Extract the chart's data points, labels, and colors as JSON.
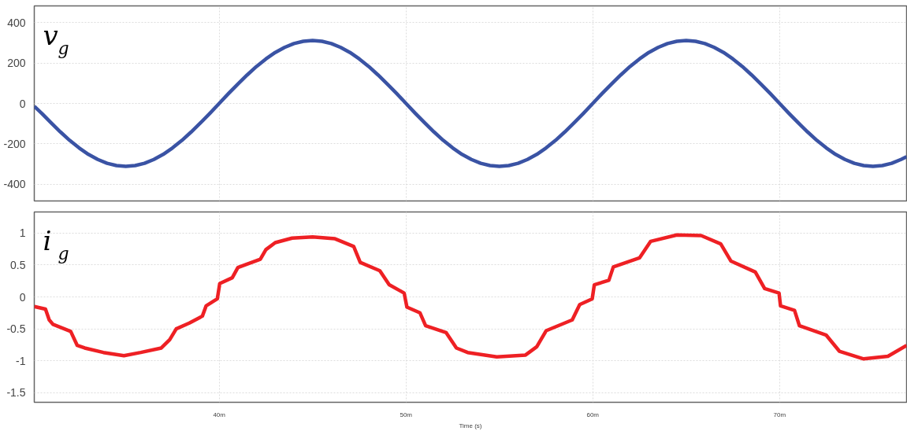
{
  "chart_data": [
    {
      "type": "line",
      "xlim": [
        30.1,
        76.8
      ],
      "xticks": [
        40,
        50,
        60,
        70
      ],
      "ylim": [
        -482,
        482
      ],
      "yticks": [
        -400,
        -200,
        0,
        200,
        400
      ],
      "grid": true,
      "tick_labels": "y",
      "legend": "top left",
      "line_style": "solid",
      "marker": "none",
      "series": [
        {
          "name": "v$_{g}$",
          "color": "#3a53a4",
          "x": [
            30.1,
            30.5,
            31,
            31.5,
            32,
            32.5,
            33,
            33.5,
            34,
            34.5,
            35,
            35.5,
            36,
            36.5,
            37,
            37.5,
            38,
            38.5,
            39,
            39.5,
            40,
            40.5,
            41,
            41.5,
            42,
            42.5,
            43,
            43.5,
            44,
            44.5,
            45,
            45.5,
            46,
            46.5,
            47,
            47.5,
            48,
            48.5,
            49,
            49.5,
            50,
            50.5,
            51,
            51.5,
            52,
            52.5,
            53,
            53.5,
            54,
            54.5,
            55,
            55.5,
            56,
            56.5,
            57,
            57.5,
            58,
            58.5,
            59,
            59.5,
            60,
            60.5,
            61,
            61.5,
            62,
            62.5,
            63,
            63.5,
            64,
            64.5,
            65,
            65.5,
            66,
            66.5,
            67,
            67.5,
            68,
            68.5,
            69,
            69.5,
            70,
            70.5,
            71,
            71.5,
            72,
            72.5,
            73,
            73.5,
            74,
            74.5,
            75,
            75.5,
            76,
            76.5,
            76.8
          ],
          "values": [
            -14,
            -49,
            -96,
            -141,
            -183,
            -220,
            -252,
            -277,
            -296,
            -307,
            -311,
            -307,
            -296,
            -277,
            -252,
            -220,
            -183,
            -141,
            -96,
            -49,
            0,
            49,
            96,
            141,
            183,
            220,
            252,
            277,
            296,
            307,
            311,
            307,
            296,
            277,
            252,
            220,
            183,
            141,
            96,
            49,
            0,
            -49,
            -96,
            -141,
            -183,
            -220,
            -252,
            -277,
            -296,
            -307,
            -311,
            -307,
            -296,
            -277,
            -252,
            -220,
            -183,
            -141,
            -96,
            -49,
            0,
            49,
            96,
            141,
            183,
            220,
            252,
            277,
            296,
            307,
            311,
            307,
            296,
            277,
            252,
            220,
            183,
            141,
            96,
            49,
            0,
            -49,
            -96,
            -141,
            -183,
            -220,
            -252,
            -277,
            -296,
            -307,
            -311,
            -307,
            -296,
            -277,
            -263
          ]
        }
      ]
    },
    {
      "type": "line",
      "xlim": [
        30.1,
        76.8
      ],
      "xticks": [
        {
          "value": 40,
          "label": "40m"
        },
        {
          "value": 50,
          "label": "50m"
        },
        {
          "value": 60,
          "label": "60m"
        },
        {
          "value": 70,
          "label": "70m"
        }
      ],
      "xlabel": "Time (s)",
      "ylim": [
        -1.65,
        1.33
      ],
      "yticks": [
        -1.5,
        -1,
        -0.5,
        0,
        0.5,
        1
      ],
      "grid": true,
      "legend": "top left",
      "line_style": "solid",
      "marker": "none",
      "series": [
        {
          "name": "i$_{g}$",
          "color": "#ee2024",
          "x": [
            30.1,
            30.7,
            30.9,
            31.1,
            32.05,
            32.4,
            32.8,
            33.8,
            34.9,
            35.8,
            36.9,
            37.35,
            37.7,
            38.4,
            39.1,
            39.3,
            39.9,
            40.03,
            40.7,
            41.0,
            42.2,
            42.5,
            43.0,
            43.9,
            45.0,
            46.2,
            47.2,
            47.55,
            48.6,
            49.1,
            49.9,
            50.05,
            50.75,
            51.05,
            52.15,
            52.7,
            53.3,
            54.86,
            56.4,
            57.0,
            57.5,
            58.9,
            59.3,
            59.97,
            60.08,
            60.86,
            61.1,
            62.5,
            63.1,
            64.5,
            65.8,
            66.85,
            67.4,
            68.7,
            69.2,
            69.97,
            70.05,
            70.8,
            71.06,
            72.5,
            73.2,
            74.5,
            75.8,
            76.8
          ],
          "values": [
            -0.15,
            -0.19,
            -0.36,
            -0.43,
            -0.54,
            -0.76,
            -0.8,
            -0.87,
            -0.92,
            -0.87,
            -0.8,
            -0.67,
            -0.5,
            -0.41,
            -0.3,
            -0.14,
            -0.03,
            0.21,
            0.3,
            0.46,
            0.59,
            0.74,
            0.85,
            0.92,
            0.94,
            0.91,
            0.79,
            0.54,
            0.41,
            0.19,
            0.06,
            -0.16,
            -0.25,
            -0.45,
            -0.56,
            -0.8,
            -0.87,
            -0.94,
            -0.91,
            -0.78,
            -0.53,
            -0.36,
            -0.12,
            -0.03,
            0.19,
            0.26,
            0.47,
            0.61,
            0.87,
            0.97,
            0.96,
            0.83,
            0.56,
            0.39,
            0.13,
            0.06,
            -0.14,
            -0.21,
            -0.45,
            -0.6,
            -0.85,
            -0.97,
            -0.93,
            -0.76
          ]
        }
      ]
    }
  ]
}
